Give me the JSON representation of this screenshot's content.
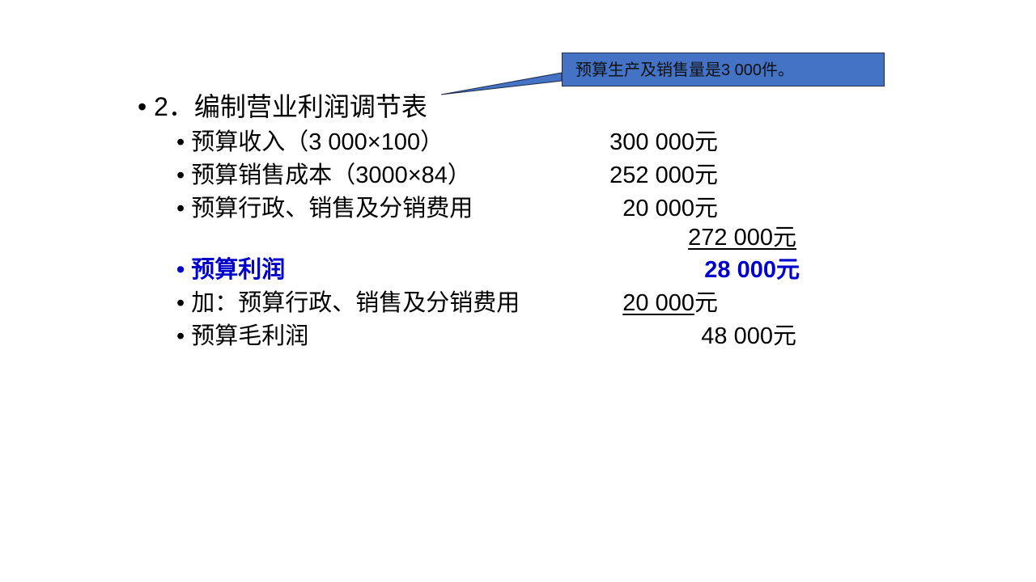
{
  "callout": {
    "text": "预算生产及销售量是3 000件。",
    "fill": "#4472C4"
  },
  "title": {
    "bullet": "•",
    "text": "2．编制营业利润调节表"
  },
  "rows": [
    {
      "bullet": "•",
      "label": "预算收入（3 000×100）",
      "amount": "300 000元"
    },
    {
      "bullet": "•",
      "label": "预算销售成本（3000×84）",
      "amount": "252 000元"
    },
    {
      "bullet": "•",
      "label": "预算行政、销售及分销费用",
      "amount": "20 000元"
    },
    {
      "subtotal": "272 000",
      "unit": "元"
    },
    {
      "bullet": "•",
      "label": "预算利润",
      "amount": "28 000元",
      "color": "#0000CC"
    },
    {
      "bullet": "•",
      "label": "加：预算行政、销售及分销费用",
      "amount_number": "20 000",
      "unit": "元"
    },
    {
      "bullet": "•",
      "label": "预算毛利润",
      "amount": "48 000元"
    }
  ]
}
